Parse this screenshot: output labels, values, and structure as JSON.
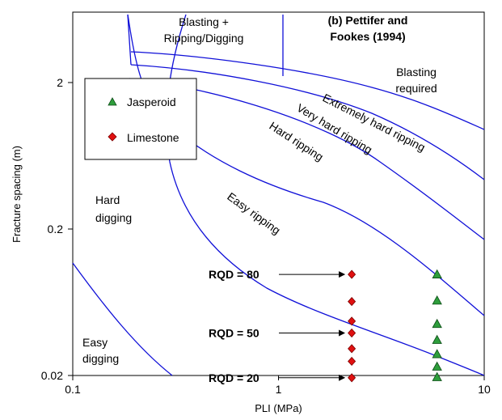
{
  "chart_data": {
    "type": "scatter",
    "title": "(b) Pettifer and Fookes (1994)",
    "xlabel": "PLI (MPa)",
    "ylabel": "Fracture spacing (m)",
    "x_scale": "log",
    "y_scale": "log",
    "xlim": [
      0.1,
      10
    ],
    "ylim": [
      0.02,
      4.7
    ],
    "x_ticks": [
      "0.1",
      "1",
      "10"
    ],
    "y_ticks": [
      "0.02",
      "0.2",
      "2"
    ],
    "grid": false,
    "legend_position": "top-left",
    "legend": [
      {
        "name": "Jasperoid",
        "marker": "triangle",
        "color": "#2e9e3c"
      },
      {
        "name": "Limestone",
        "marker": "diamond",
        "color": "#e01010"
      }
    ],
    "series": [
      {
        "name": "Jasperoid",
        "x": [
          5.9,
          5.9,
          5.9,
          5.9,
          5.9,
          5.9,
          5.9
        ],
        "y": [
          0.098,
          0.065,
          0.045,
          0.035,
          0.028,
          0.023,
          0.0195
        ]
      },
      {
        "name": "Limestone",
        "x": [
          2.27,
          2.27,
          2.27,
          2.27,
          2.27,
          2.27,
          2.27
        ],
        "y": [
          0.098,
          0.064,
          0.047,
          0.039,
          0.0305,
          0.025,
          0.0193
        ]
      }
    ],
    "rqd_labels": [
      {
        "text": "RQD = 80",
        "y": 0.098
      },
      {
        "text": "RQD = 50",
        "y": 0.039
      },
      {
        "text": "RQD = 20",
        "y": 0.0193
      }
    ],
    "zone_labels": [
      {
        "lines": [
          "Blasting +",
          "Ripping/Digging"
        ]
      },
      {
        "lines": [
          "Blasting",
          "required"
        ]
      },
      {
        "lines": [
          "Extremely hard ripping"
        ]
      },
      {
        "lines": [
          "Very hard ripping"
        ]
      },
      {
        "lines": [
          "Hard ripping"
        ]
      },
      {
        "lines": [
          "Easy ripping"
        ]
      },
      {
        "lines": [
          "Hard",
          "digging"
        ]
      },
      {
        "lines": [
          "Easy",
          "digging"
        ]
      }
    ]
  }
}
